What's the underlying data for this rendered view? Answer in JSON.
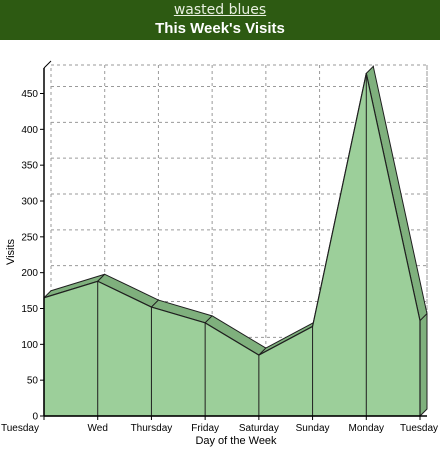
{
  "header": {
    "site_name": "wasted blues",
    "title": "This Week's Visits"
  },
  "colors": {
    "header_bg": "#2d5a12",
    "area_fill": "#9ccf9a",
    "area_top": "#7fb07d",
    "line": "#1f1f1f",
    "grid": "#9a9a9a"
  },
  "chart_data": {
    "type": "area",
    "categories": [
      "Tuesday",
      "Wed",
      "Thursday",
      "Friday",
      "Saturday",
      "Sunday",
      "Monday",
      "Tuesday"
    ],
    "values": [
      165,
      188,
      152,
      130,
      85,
      125,
      478,
      133
    ],
    "title": "This Week's Visits",
    "xlabel": "Day of the Week",
    "ylabel": "Visits",
    "ylim": [
      0,
      480
    ],
    "yticks": [
      0,
      50,
      100,
      150,
      200,
      250,
      300,
      350,
      400,
      450
    ],
    "grid": true,
    "style": "3d"
  }
}
